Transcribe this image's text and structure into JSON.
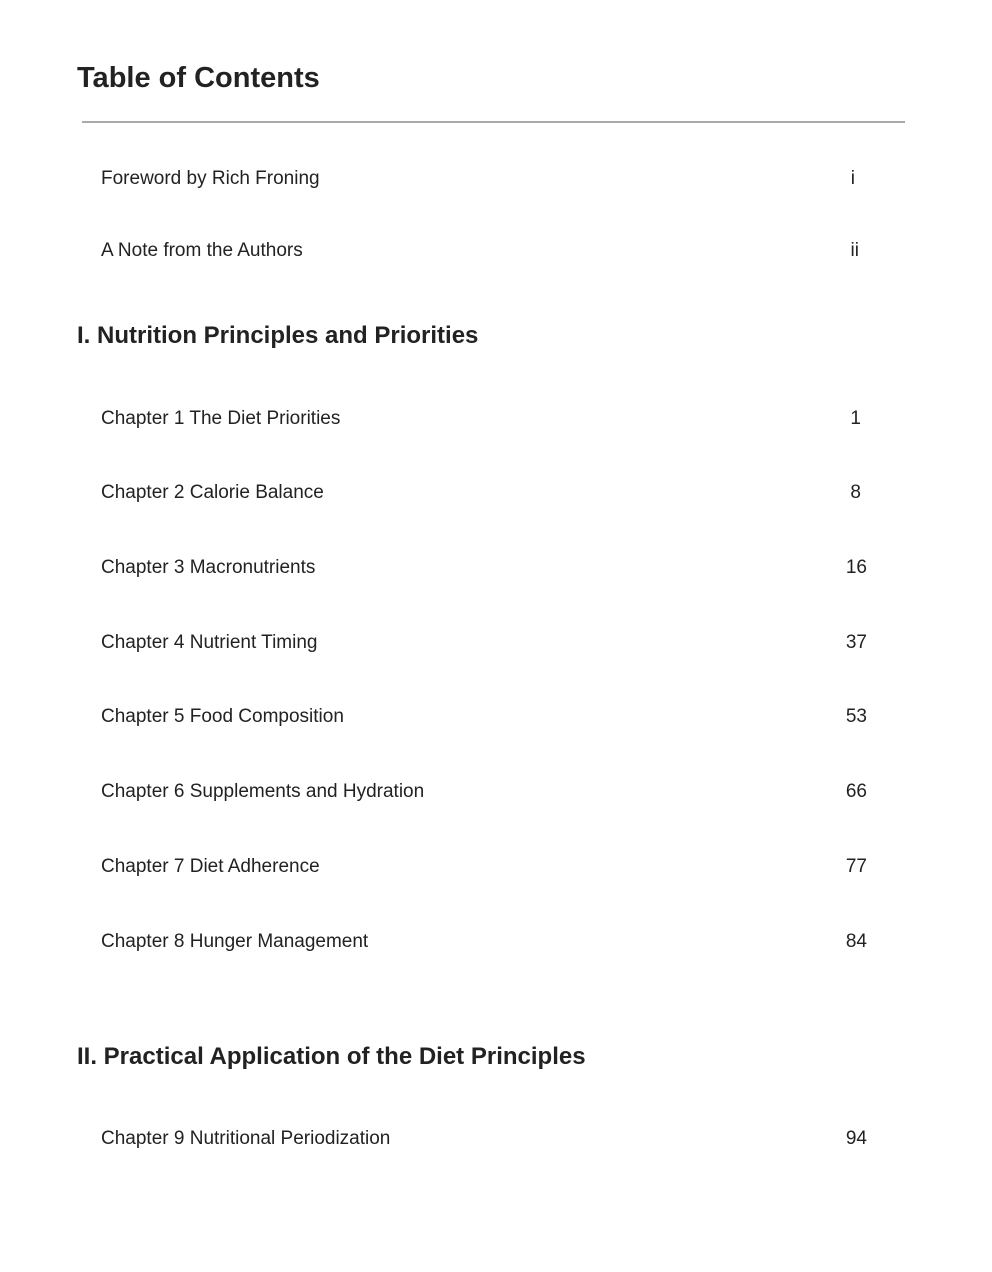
{
  "title": "Table of Contents",
  "front": [
    {
      "label": "Foreword by Rich Froning",
      "page": "i"
    },
    {
      "label": "A Note from the Authors",
      "page": "ii"
    }
  ],
  "sections": [
    {
      "title": "I. Nutrition Principles and Priorities",
      "entries": [
        {
          "label": "Chapter 1 The Diet Priorities",
          "page": "1"
        },
        {
          "label": "Chapter 2 Calorie Balance",
          "page": "8"
        },
        {
          "label": "Chapter 3 Macronutrients",
          "page": "16"
        },
        {
          "label": "Chapter 4 Nutrient Timing",
          "page": "37"
        },
        {
          "label": "Chapter 5 Food Composition",
          "page": "53"
        },
        {
          "label": "Chapter 6 Supplements and Hydration",
          "page": "66"
        },
        {
          "label": "Chapter 7 Diet Adherence",
          "page": "77"
        },
        {
          "label": "Chapter 8 Hunger Management",
          "page": "84"
        }
      ]
    },
    {
      "title": "II. Practical Application of the Diet Principles",
      "entries": [
        {
          "label": "Chapter 9 Nutritional Periodization",
          "page": "94"
        }
      ]
    }
  ]
}
